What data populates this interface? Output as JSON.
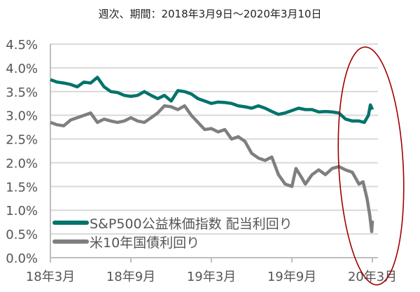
{
  "chart_data": {
    "type": "line",
    "title": "週次、期間：2018年3月9日～2020年3月10日",
    "xlabel": "",
    "ylabel": "",
    "x_unit": "months since 2018年3月",
    "xlim": [
      0,
      24
    ],
    "ylim": [
      0,
      4.5
    ],
    "y_ticks": [
      "0.0%",
      "0.5%",
      "1.0%",
      "1.5%",
      "2.0%",
      "2.5%",
      "3.0%",
      "3.5%",
      "4.0%",
      "4.5%"
    ],
    "y_tick_values": [
      0,
      0.5,
      1,
      1.5,
      2,
      2.5,
      3,
      3.5,
      4,
      4.5
    ],
    "x_ticks": [
      "18年3月",
      "18年9月",
      "19年3月",
      "19年9月",
      "20年3月"
    ],
    "x_tick_values": [
      0,
      6,
      12,
      18,
      24
    ],
    "grid": true,
    "legend_position": "bottom-left",
    "highlight": "red ellipse around 2020年2月–3月",
    "series": [
      {
        "name": "S&P500公益株価指数 配当利回り",
        "color": "#00736B",
        "x": [
          0,
          0.5,
          1,
          1.5,
          2,
          2.5,
          3,
          3.5,
          4,
          4.5,
          5,
          5.5,
          6,
          6.5,
          7,
          7.5,
          8,
          8.5,
          9,
          9.5,
          10,
          10.5,
          11,
          11.5,
          12,
          12.5,
          13,
          13.5,
          14,
          14.5,
          15,
          15.5,
          16,
          16.5,
          17,
          17.5,
          18,
          18.5,
          19,
          19.5,
          20,
          20.5,
          21,
          21.5,
          22,
          22.5,
          23,
          23.4,
          23.7,
          23.85,
          24
        ],
        "values": [
          3.75,
          3.7,
          3.68,
          3.65,
          3.6,
          3.7,
          3.68,
          3.8,
          3.6,
          3.5,
          3.48,
          3.42,
          3.4,
          3.42,
          3.5,
          3.42,
          3.35,
          3.42,
          3.3,
          3.52,
          3.5,
          3.45,
          3.35,
          3.3,
          3.25,
          3.28,
          3.27,
          3.25,
          3.2,
          3.18,
          3.15,
          3.2,
          3.15,
          3.08,
          3.02,
          3.05,
          3.1,
          3.15,
          3.12,
          3.12,
          3.07,
          3.08,
          3.07,
          3.05,
          2.92,
          2.88,
          2.88,
          2.85,
          3.0,
          3.22,
          3.12
        ]
      },
      {
        "name": "米10年国債利回り",
        "color": "#7F7F7F",
        "x": [
          0,
          0.5,
          1,
          1.5,
          2,
          2.5,
          3,
          3.5,
          4,
          4.5,
          5,
          5.5,
          6,
          6.5,
          7,
          7.5,
          8,
          8.5,
          9,
          9.5,
          10,
          10.5,
          11,
          11.5,
          12,
          12.5,
          13,
          13.5,
          14,
          14.5,
          15,
          15.5,
          16,
          16.5,
          17,
          17.5,
          18,
          18.3,
          18.7,
          19,
          19.5,
          20,
          20.5,
          21,
          21.5,
          22,
          22.5,
          23,
          23.3,
          23.6,
          23.8,
          23.95,
          24
        ],
        "values": [
          2.85,
          2.8,
          2.78,
          2.9,
          2.95,
          3.0,
          3.05,
          2.85,
          2.92,
          2.88,
          2.85,
          2.88,
          2.95,
          2.88,
          2.85,
          2.95,
          3.05,
          3.2,
          3.18,
          3.12,
          3.2,
          3.0,
          2.85,
          2.7,
          2.72,
          2.65,
          2.7,
          2.5,
          2.55,
          2.45,
          2.2,
          2.1,
          2.05,
          2.12,
          1.75,
          1.55,
          1.5,
          1.88,
          1.7,
          1.55,
          1.75,
          1.85,
          1.75,
          1.88,
          1.92,
          1.85,
          1.8,
          1.55,
          1.6,
          1.25,
          0.9,
          0.55,
          0.78
        ]
      }
    ]
  }
}
